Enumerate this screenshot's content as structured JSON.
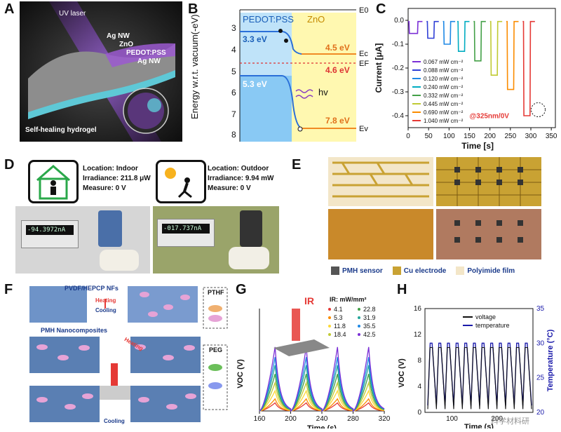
{
  "panels": {
    "A": {
      "label": "A",
      "uv_laser": "UV laser",
      "ag_nw_top": "Ag NW",
      "zno": "ZnO",
      "pedot": "PEDOT:PSS",
      "ag_nw_bottom": "Ag NW",
      "hydrogel": "Self-healing hydrogel"
    },
    "B": {
      "label": "B",
      "ylabel": "Energy w.r.t. vacuum(-eV)",
      "yticks": [
        "3",
        "4",
        "5",
        "6",
        "7",
        "8"
      ],
      "pedot": "PEDOT:PSS",
      "zno": "ZnO",
      "e0": "E0",
      "ec": "Ec",
      "ef": "EF",
      "ev": "Ev",
      "v33": "3.3 eV",
      "v53": "5.3 eV",
      "v45": "4.5 eV",
      "v46": "4.6 eV",
      "v78": "7.8 eV",
      "hv": "hv"
    },
    "C": {
      "label": "C",
      "ylabel": "Current [μA]",
      "xlabel": "Time [s]",
      "annotation": "@325nm/0V",
      "legend_unit": "mW cm⁻²"
    },
    "D": {
      "label": "D",
      "indoor_location": "Location: Indoor",
      "indoor_irradiance": "Irradiance: 211.8 μW",
      "indoor_measure": "Measure: 0 V",
      "outdoor_location": "Location: Outdoor",
      "outdoor_irradiance": "Irradiance: 9.94 mW",
      "outdoor_measure": "Measure: 0 V",
      "meter1": "-94.3972nA",
      "meter2": "-017.737nA"
    },
    "E": {
      "label": "E",
      "legend_sensor": "PMH sensor",
      "legend_cu": "Cu electrode",
      "legend_pi": "Polyimide film"
    },
    "F": {
      "label": "F",
      "nfs": "PVDF/HEPCP NFs",
      "heating": "Heating",
      "cooling": "Cooling",
      "ptfh": "PTHF",
      "peg": "PEG",
      "composites": "PMH Nanocomposites",
      "heating2": "Heating",
      "cooling2": "Cooling"
    },
    "G": {
      "label": "G",
      "ylabel": "VOC (V)",
      "xlabel": "Time (s)",
      "ir": "IR",
      "legend_title": "IR: mW/mm²",
      "legend_left": [
        "4.1",
        "5.3",
        "11.8",
        "18.4"
      ],
      "legend_right": [
        "22.8",
        "31.9",
        "35.5",
        "42.5"
      ]
    },
    "H": {
      "label": "H",
      "ylabel_left": "VOC (V)",
      "ylabel_right": "Temperature (°C)",
      "xlabel": "Time (s)",
      "legend_voltage": "voltage",
      "legend_temp": "temperature",
      "watermark": "科学材料研"
    }
  },
  "chart_data": [
    {
      "panel": "C",
      "type": "line",
      "xlabel": "Time [s]",
      "ylabel": "Current [μA]",
      "xlim": [
        0,
        360
      ],
      "ylim": [
        -0.45,
        0.05
      ],
      "xticks": [
        0,
        50,
        100,
        150,
        200,
        250,
        300,
        350
      ],
      "yticks": [
        0.0,
        -0.1,
        -0.2,
        -0.3,
        -0.4
      ],
      "annotation": "@325nm/0V",
      "series": [
        {
          "name": "0.067 mW cm⁻²",
          "color": "#7b2fd6",
          "x": [
            0,
            15,
            25
          ],
          "y": [
            -0.01,
            -0.055,
            -0.01
          ]
        },
        {
          "name": "0.088 mW cm⁻²",
          "color": "#2f3fd6",
          "x": [
            45,
            55,
            65
          ],
          "y": [
            -0.01,
            -0.075,
            -0.01
          ]
        },
        {
          "name": "0.120 mW cm⁻²",
          "color": "#1e88e5",
          "x": [
            85,
            95,
            105
          ],
          "y": [
            -0.01,
            -0.1,
            -0.01
          ]
        },
        {
          "name": "0.240 mW cm⁻²",
          "color": "#00acc1",
          "x": [
            120,
            130,
            140
          ],
          "y": [
            -0.01,
            -0.13,
            -0.01
          ]
        },
        {
          "name": "0.332 mW cm⁻²",
          "color": "#43a047",
          "x": [
            160,
            170,
            180
          ],
          "y": [
            -0.01,
            -0.17,
            -0.01
          ]
        },
        {
          "name": "0.445 mW cm⁻²",
          "color": "#c0ca33",
          "x": [
            200,
            210,
            220
          ],
          "y": [
            -0.01,
            -0.23,
            -0.01
          ]
        },
        {
          "name": "0.690 mW cm⁻²",
          "color": "#fb8c00",
          "x": [
            240,
            250,
            260
          ],
          "y": [
            -0.01,
            -0.29,
            -0.01
          ]
        },
        {
          "name": "1.040 mW cm⁻²",
          "color": "#e53935",
          "x": [
            280,
            290,
            300
          ],
          "y": [
            -0.01,
            -0.4,
            -0.01
          ]
        }
      ]
    },
    {
      "panel": "G",
      "type": "line",
      "xlabel": "Time (s)",
      "ylabel": "VOC (V)",
      "xlim": [
        160,
        320
      ],
      "xticks": [
        160,
        200,
        240,
        280,
        320
      ],
      "peaks_x": [
        180,
        220,
        260,
        300
      ],
      "series": [
        {
          "name": "4.1",
          "color": "#e53935",
          "peak": 0.12
        },
        {
          "name": "5.3",
          "color": "#fb8c00",
          "peak": 0.18
        },
        {
          "name": "11.8",
          "color": "#fdd835",
          "peak": 0.3
        },
        {
          "name": "18.4",
          "color": "#c0ca33",
          "peak": 0.42
        },
        {
          "name": "22.8",
          "color": "#43a047",
          "peak": 0.55
        },
        {
          "name": "31.9",
          "color": "#26a69a",
          "peak": 0.68
        },
        {
          "name": "35.5",
          "color": "#1e88e5",
          "peak": 0.8
        },
        {
          "name": "42.5",
          "color": "#7b2fd6",
          "peak": 0.95
        }
      ]
    },
    {
      "panel": "H",
      "type": "line",
      "xlabel": "Time (s)",
      "ylabel": "VOC (V)",
      "ylim_left": [
        0,
        16
      ],
      "ylim_right": [
        20,
        35
      ],
      "yticks_left": [
        0,
        4,
        8,
        12,
        16
      ],
      "yticks_right": [
        20,
        25,
        30,
        35
      ],
      "xticks": [
        100,
        200
      ],
      "series": [
        {
          "name": "voltage",
          "color": "#111111",
          "cycles": 12,
          "low": 0.5,
          "high": 10
        },
        {
          "name": "temperature",
          "color": "#1a1aaa",
          "cycles": 12,
          "low": 21,
          "high": 30
        }
      ]
    }
  ]
}
